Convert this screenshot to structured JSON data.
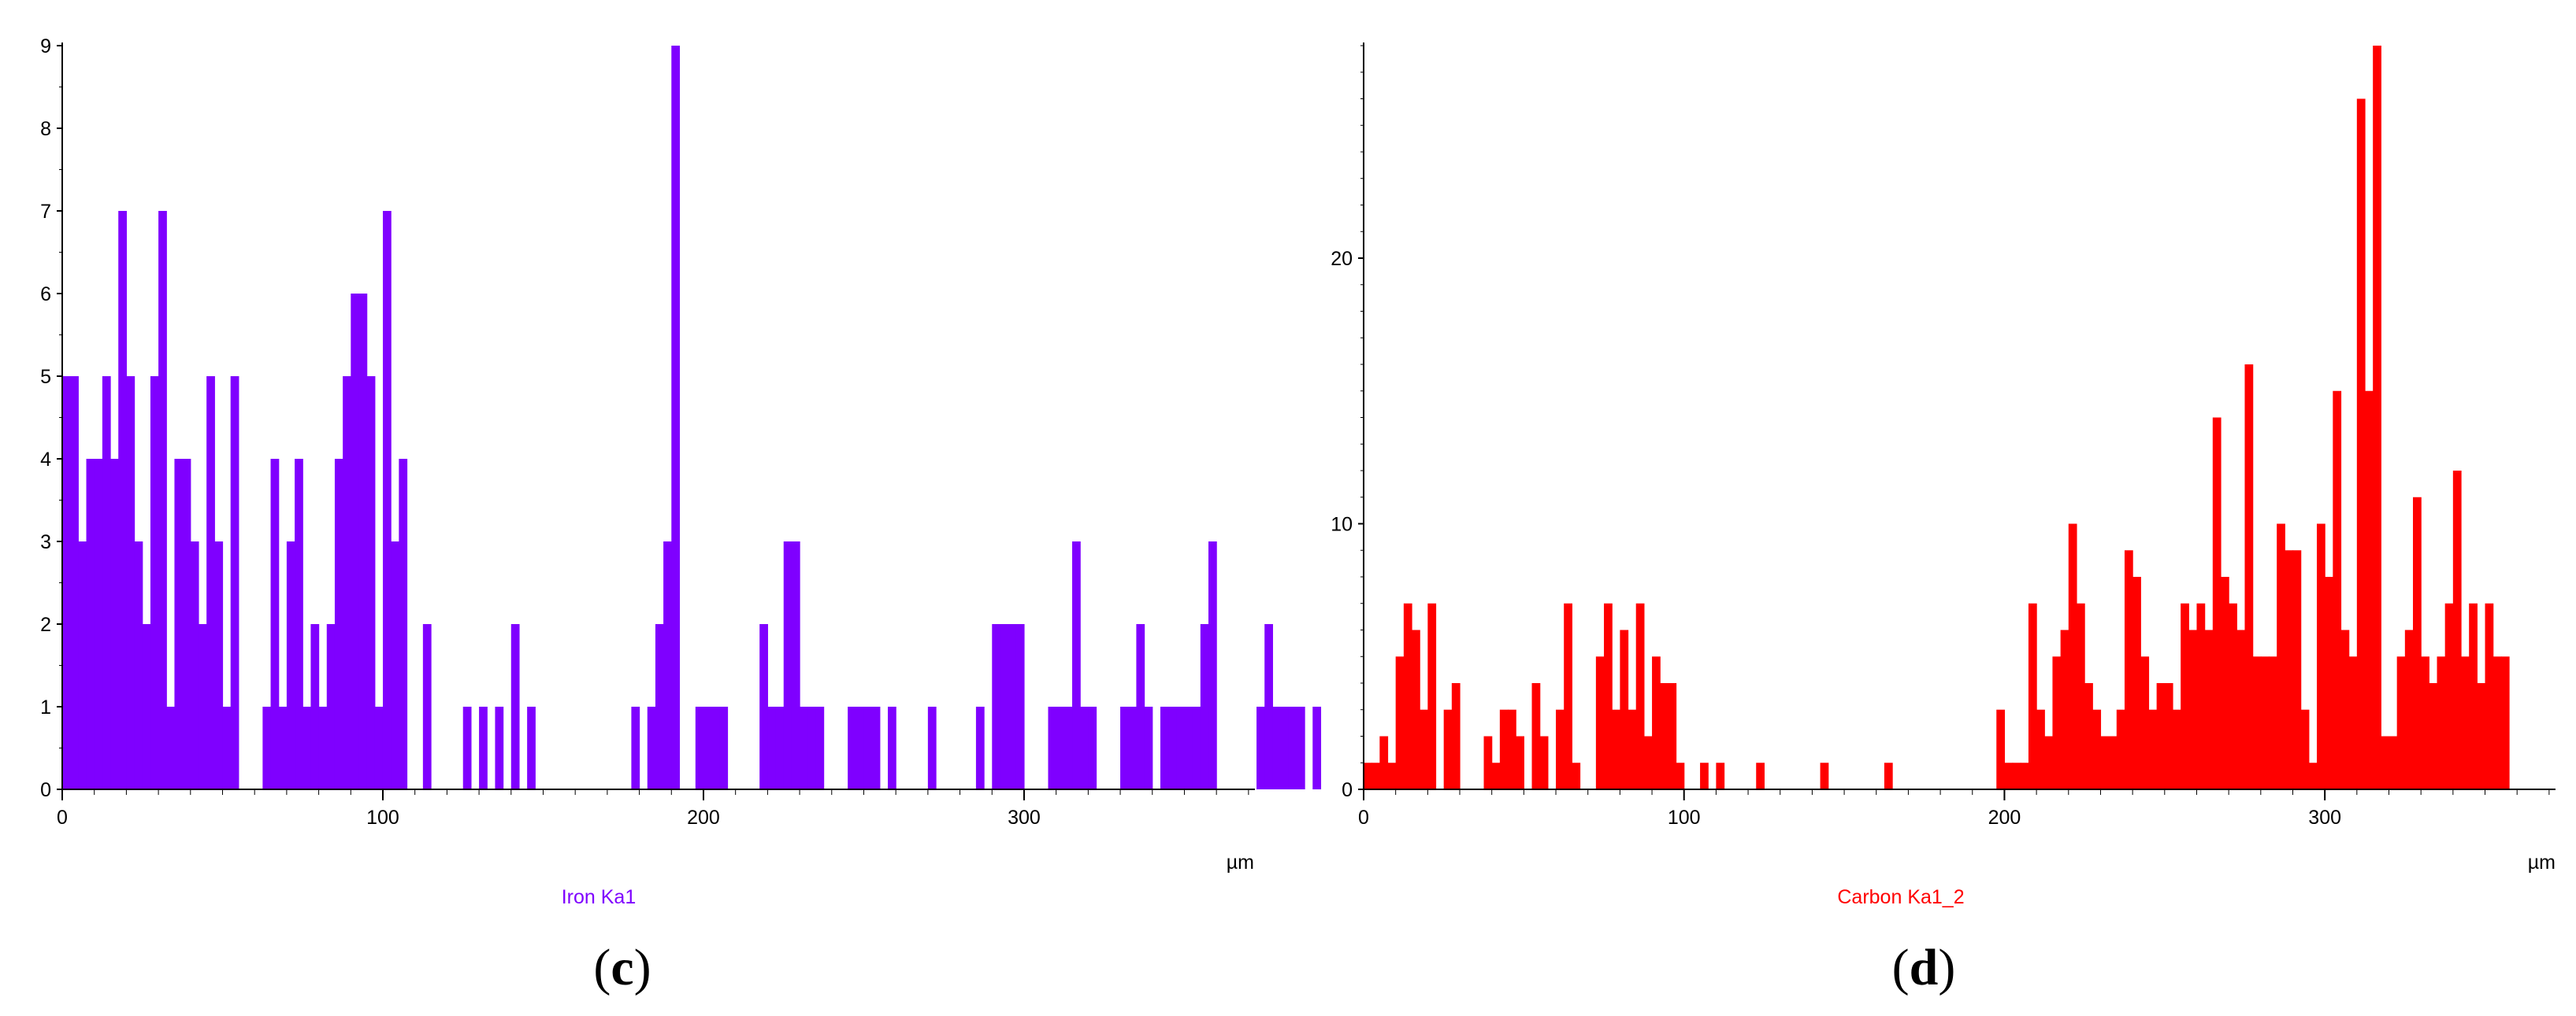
{
  "chart_data": [
    {
      "type": "bar",
      "panel_label": "c",
      "series_label": "Iron Ka1",
      "color": "#7f00ff",
      "xunit": "µm",
      "xlim": [
        0,
        372
      ],
      "ylim": [
        0,
        9
      ],
      "xticks": [
        0,
        100,
        200,
        300
      ],
      "yticks": [
        0,
        1,
        2,
        3,
        4,
        5,
        6,
        7,
        8,
        9
      ],
      "bin_width": 2.5,
      "x_start": 0,
      "values": [
        5,
        5,
        3,
        4,
        4,
        5,
        4,
        7,
        5,
        3,
        2,
        5,
        7,
        1,
        4,
        4,
        3,
        2,
        5,
        3,
        1,
        5,
        0,
        0,
        0,
        1,
        4,
        1,
        3,
        4,
        1,
        2,
        1,
        2,
        4,
        5,
        6,
        6,
        5,
        1,
        7,
        3,
        4,
        0,
        0,
        2,
        0,
        0,
        0,
        0,
        1,
        0,
        1,
        0,
        1,
        0,
        2,
        0,
        1,
        0,
        0,
        0,
        0,
        0,
        0,
        0,
        0,
        0,
        0,
        0,
        0,
        1,
        0,
        1,
        2,
        3,
        9,
        0,
        0,
        1,
        1,
        1,
        1,
        0,
        0,
        0,
        0,
        2,
        1,
        1,
        3,
        3,
        1,
        1,
        1,
        0,
        0,
        0,
        1,
        1,
        1,
        1,
        0,
        1,
        0,
        0,
        0,
        0,
        1,
        0,
        0,
        0,
        0,
        0,
        1,
        0,
        2,
        2,
        2,
        2,
        0,
        0,
        0,
        1,
        1,
        1,
        3,
        1,
        1,
        0,
        0,
        0,
        1,
        1,
        2,
        1,
        0,
        1,
        1,
        1,
        1,
        1,
        2,
        3,
        0,
        0,
        0,
        0,
        0,
        1,
        2,
        1,
        1,
        1,
        1,
        0,
        1,
        0
      ]
    },
    {
      "type": "bar",
      "panel_label": "d",
      "series_label": "Carbon Ka1_2",
      "color": "#ff0000",
      "xunit": "µm",
      "xlim": [
        0,
        372
      ],
      "ylim": [
        0,
        28
      ],
      "xticks": [
        0,
        100,
        200,
        300
      ],
      "yticks": [
        0,
        10,
        20
      ],
      "bin_width": 2.5,
      "x_start": 0,
      "values": [
        1,
        1,
        2,
        1,
        5,
        7,
        6,
        3,
        7,
        0,
        3,
        4,
        0,
        0,
        0,
        2,
        1,
        3,
        3,
        2,
        0,
        4,
        2,
        0,
        3,
        7,
        1,
        0,
        0,
        5,
        7,
        3,
        6,
        3,
        7,
        2,
        5,
        4,
        4,
        1,
        0,
        0,
        1,
        0,
        1,
        0,
        0,
        0,
        0,
        1,
        0,
        0,
        0,
        0,
        0,
        0,
        0,
        1,
        0,
        0,
        0,
        0,
        0,
        0,
        0,
        1,
        0,
        0,
        0,
        0,
        0,
        0,
        0,
        0,
        0,
        0,
        0,
        0,
        0,
        3,
        1,
        1,
        1,
        7,
        3,
        2,
        5,
        6,
        10,
        7,
        4,
        3,
        2,
        2,
        3,
        9,
        8,
        5,
        3,
        4,
        4,
        3,
        7,
        6,
        7,
        6,
        14,
        8,
        7,
        6,
        16,
        5,
        5,
        5,
        10,
        9,
        9,
        3,
        1,
        10,
        8,
        15,
        6,
        5,
        26,
        15,
        28,
        2,
        2,
        5,
        6,
        11,
        5,
        4,
        5,
        7,
        12,
        5,
        7,
        4,
        7,
        5,
        5
      ]
    }
  ]
}
